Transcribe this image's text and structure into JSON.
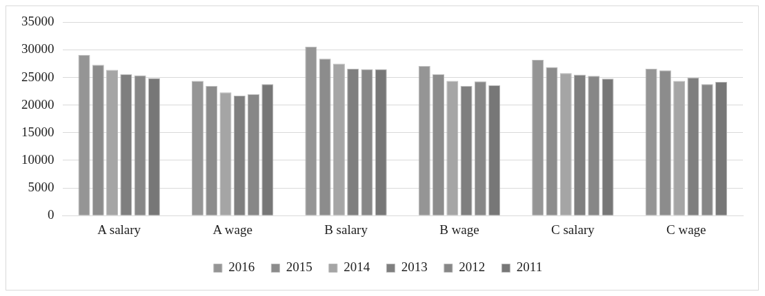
{
  "chart_data": {
    "type": "bar",
    "categories": [
      "A salary",
      "A wage",
      "B salary",
      "B wage",
      "C salary",
      "C wage"
    ],
    "series": [
      {
        "name": "2016",
        "color": "#959595",
        "values": [
          29100,
          24400,
          30600,
          27100,
          28200,
          26600
        ]
      },
      {
        "name": "2015",
        "color": "#8c8c8c",
        "values": [
          27300,
          23500,
          28400,
          25600,
          26900,
          26300
        ]
      },
      {
        "name": "2014",
        "color": "#a5a5a5",
        "values": [
          26400,
          22300,
          27500,
          24400,
          25800,
          24400
        ]
      },
      {
        "name": "2013",
        "color": "#7f7f7f",
        "values": [
          25600,
          21700,
          26600,
          23500,
          25500,
          25000
        ]
      },
      {
        "name": "2012",
        "color": "#878787",
        "values": [
          25400,
          22000,
          26500,
          24300,
          25300,
          23800
        ]
      },
      {
        "name": "2011",
        "color": "#777777",
        "values": [
          24900,
          23800,
          26500,
          23600,
          24800,
          24200
        ]
      }
    ],
    "ylim": [
      0,
      35000
    ],
    "yticks": [
      0,
      5000,
      10000,
      15000,
      20000,
      25000,
      30000,
      35000
    ],
    "grid": "y",
    "legend": "bottom"
  }
}
